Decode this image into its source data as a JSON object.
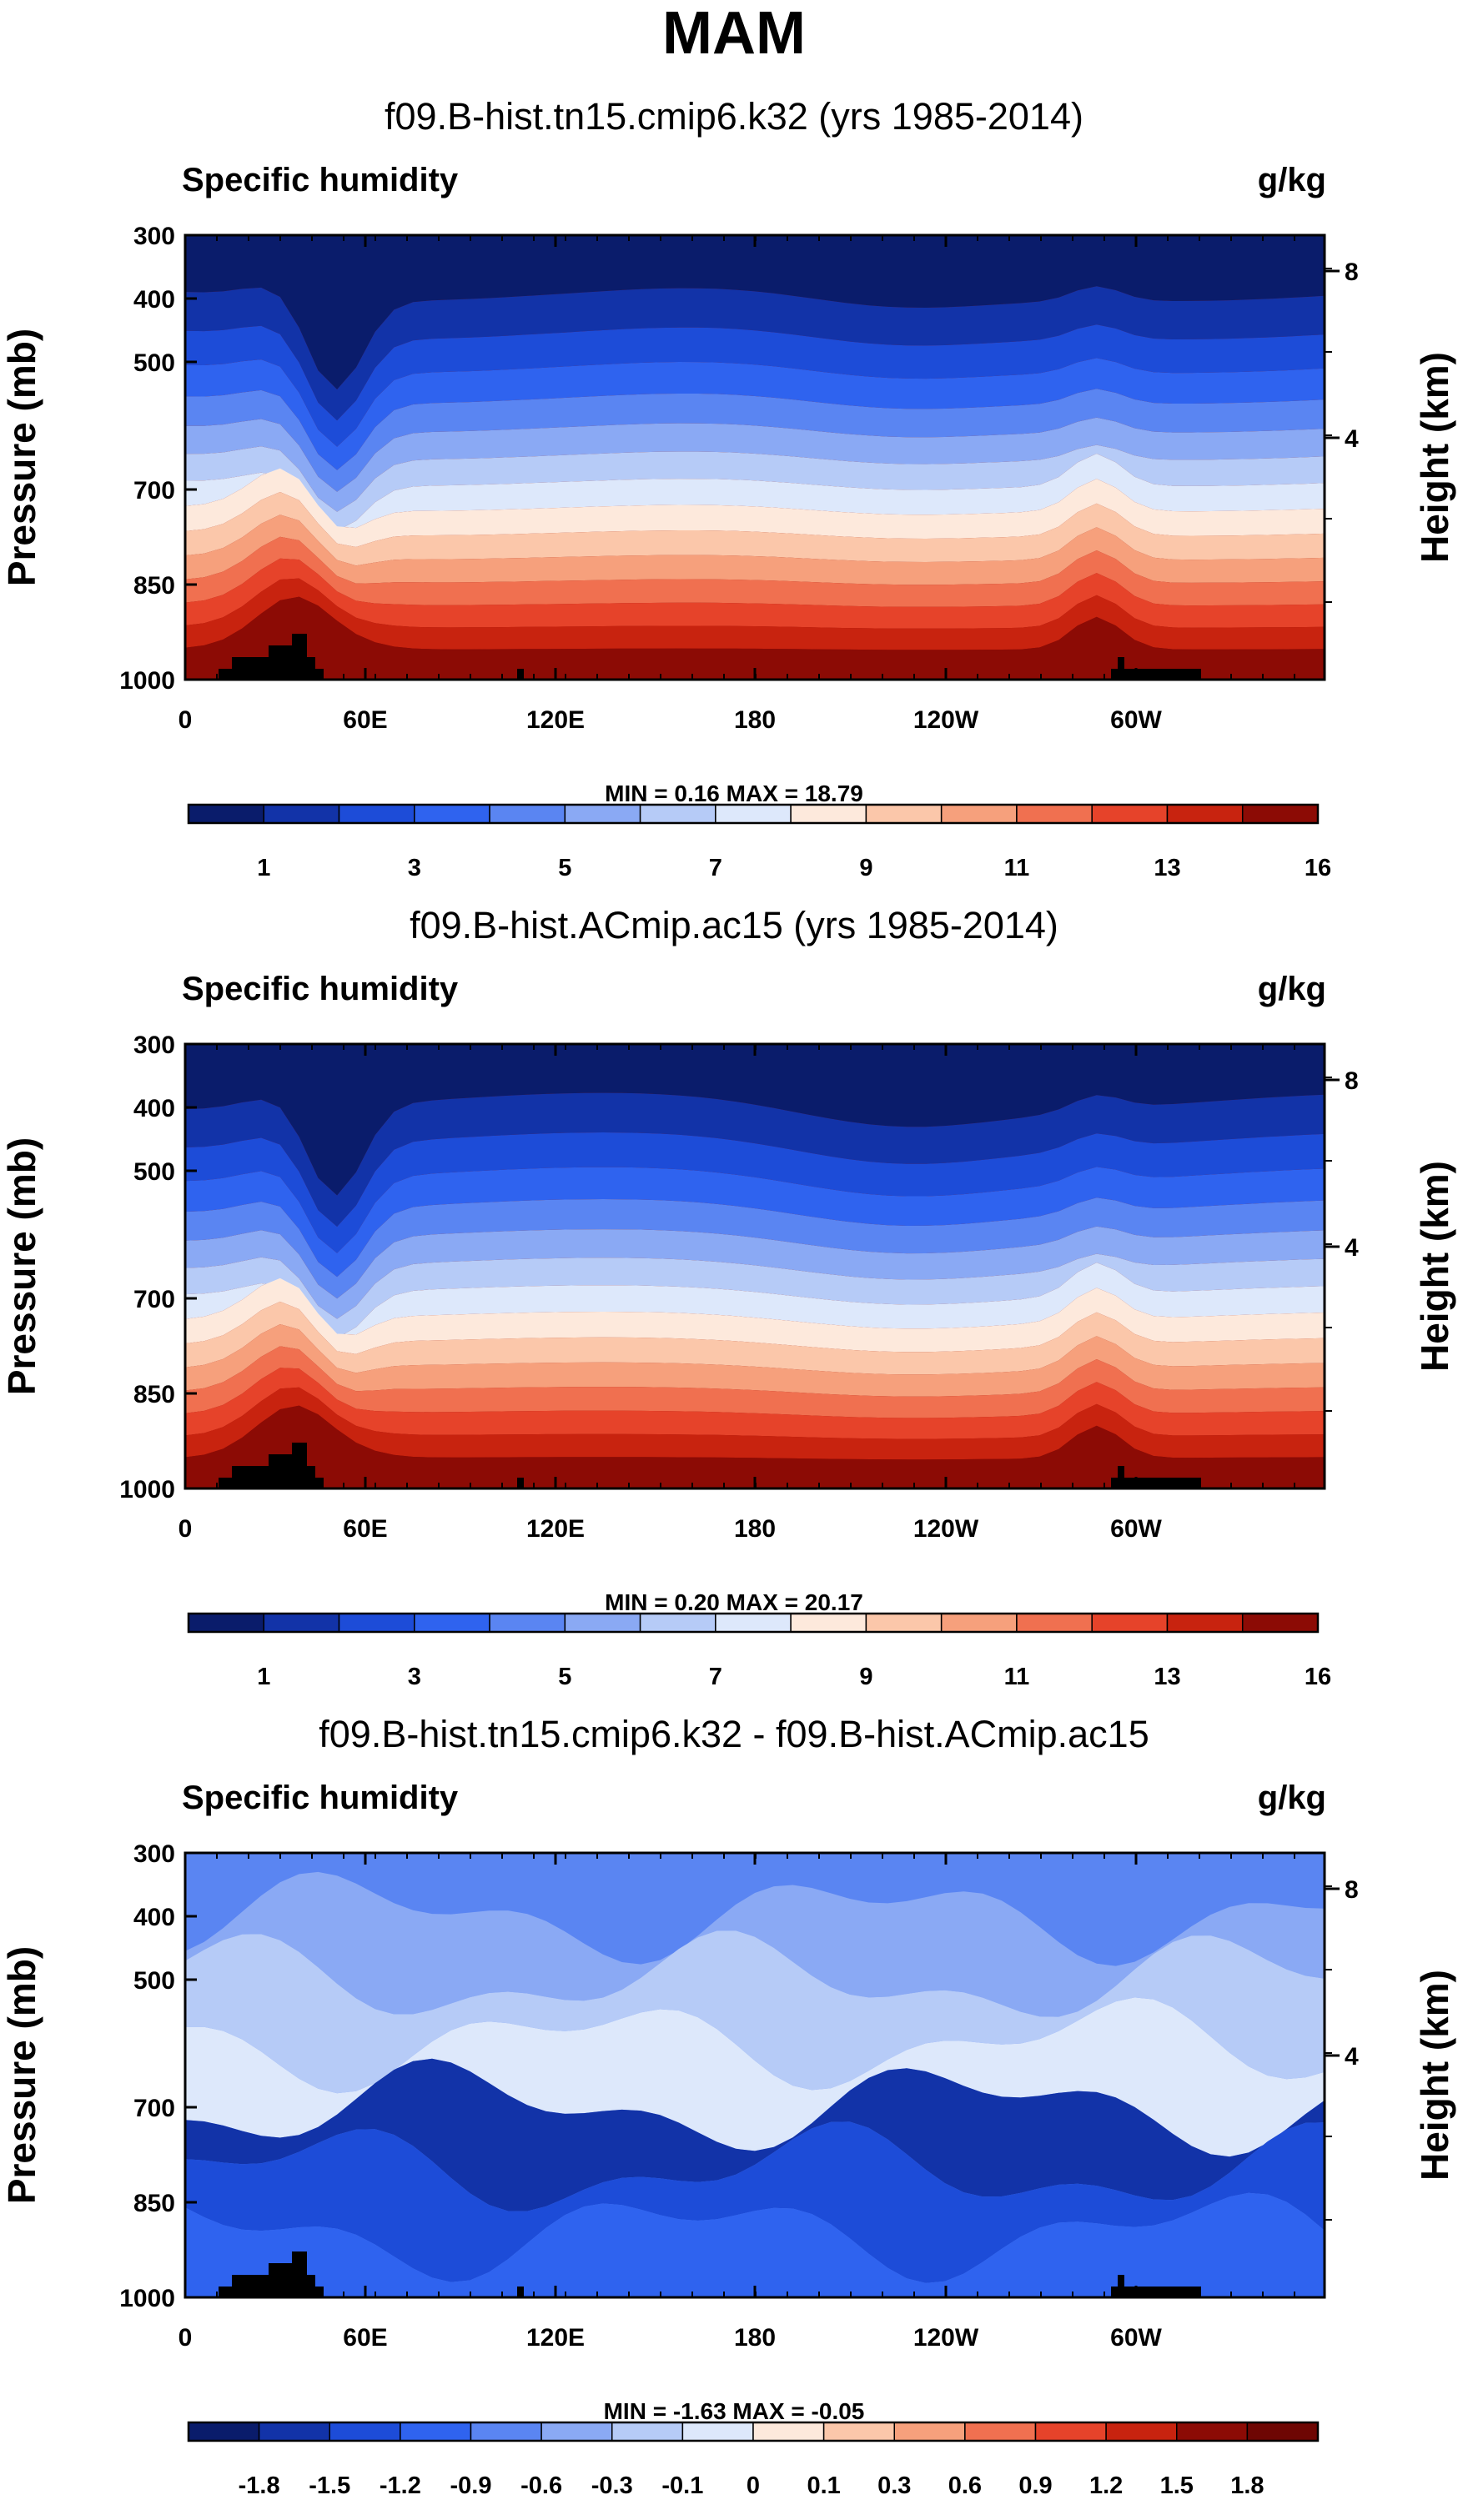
{
  "title": "MAM",
  "chart_data": [
    {
      "type": "heatmap",
      "title": "f09.B-hist.tn15.cmip6.k32 (yrs 1985-2014)",
      "variable": "Specific humidity",
      "units": "g/kg",
      "ylabel": "Pressure (mb)",
      "ylabel_right": "Height (km)",
      "y_ticks": [
        "300",
        "400",
        "500",
        "700",
        "850",
        "1000"
      ],
      "y_right_ticks": [
        "8",
        "4"
      ],
      "x_ticks": [
        "0",
        "60E",
        "120E",
        "180",
        "120W",
        "60W"
      ],
      "min_max": "MIN =   0.16   MAX =  18.79",
      "colorbar_labels": [
        "1",
        "3",
        "5",
        "7",
        "9",
        "11",
        "13",
        "16"
      ],
      "colors": [
        "#0a1c6b",
        "#1233a8",
        "#1d4cd8",
        "#2f63ef",
        "#5a85f2",
        "#8aa9f4",
        "#b6cbf7",
        "#dde8fb",
        "#fde9dc",
        "#fbc7aa",
        "#f6a07c",
        "#f07050",
        "#e6432a",
        "#c8230f",
        "#8c0b05"
      ]
    },
    {
      "type": "heatmap",
      "title": "f09.B-hist.ACmip.ac15 (yrs 1985-2014)",
      "variable": "Specific humidity",
      "units": "g/kg",
      "ylabel": "Pressure (mb)",
      "ylabel_right": "Height (km)",
      "y_ticks": [
        "300",
        "400",
        "500",
        "700",
        "850",
        "1000"
      ],
      "y_right_ticks": [
        "8",
        "4"
      ],
      "x_ticks": [
        "0",
        "60E",
        "120E",
        "180",
        "120W",
        "60W"
      ],
      "min_max": "MIN =   0.20   MAX =  20.17",
      "colorbar_labels": [
        "1",
        "3",
        "5",
        "7",
        "9",
        "11",
        "13",
        "16"
      ],
      "colors": [
        "#0a1c6b",
        "#1233a8",
        "#1d4cd8",
        "#2f63ef",
        "#5a85f2",
        "#8aa9f4",
        "#b6cbf7",
        "#dde8fb",
        "#fde9dc",
        "#fbc7aa",
        "#f6a07c",
        "#f07050",
        "#e6432a",
        "#c8230f",
        "#8c0b05"
      ]
    },
    {
      "type": "heatmap",
      "title": "f09.B-hist.tn15.cmip6.k32 - f09.B-hist.ACmip.ac15",
      "variable": "Specific humidity",
      "units": "g/kg",
      "ylabel": "Pressure (mb)",
      "ylabel_right": "Height (km)",
      "y_ticks": [
        "300",
        "400",
        "500",
        "700",
        "850",
        "1000"
      ],
      "y_right_ticks": [
        "8",
        "4"
      ],
      "x_ticks": [
        "0",
        "60E",
        "120E",
        "180",
        "120W",
        "60W"
      ],
      "min_max": "MIN =  -1.63   MAX =  -0.05",
      "colorbar_labels": [
        "-1.8",
        "-1.5",
        "-1.2",
        "-0.9",
        "-0.6",
        "-0.3",
        "-0.1",
        "0",
        "0.1",
        "0.3",
        "0.6",
        "0.9",
        "1.2",
        "1.5",
        "1.8"
      ],
      "colors": [
        "#0a1c6b",
        "#1233a8",
        "#1d4cd8",
        "#2f63ef",
        "#5a85f2",
        "#8aa9f4",
        "#b6cbf7",
        "#dde8fb",
        "#fde9dc",
        "#fbc7aa",
        "#f6a07c",
        "#f07050",
        "#e6432a",
        "#c8230f",
        "#8c0b05",
        "#6e0603"
      ]
    }
  ]
}
